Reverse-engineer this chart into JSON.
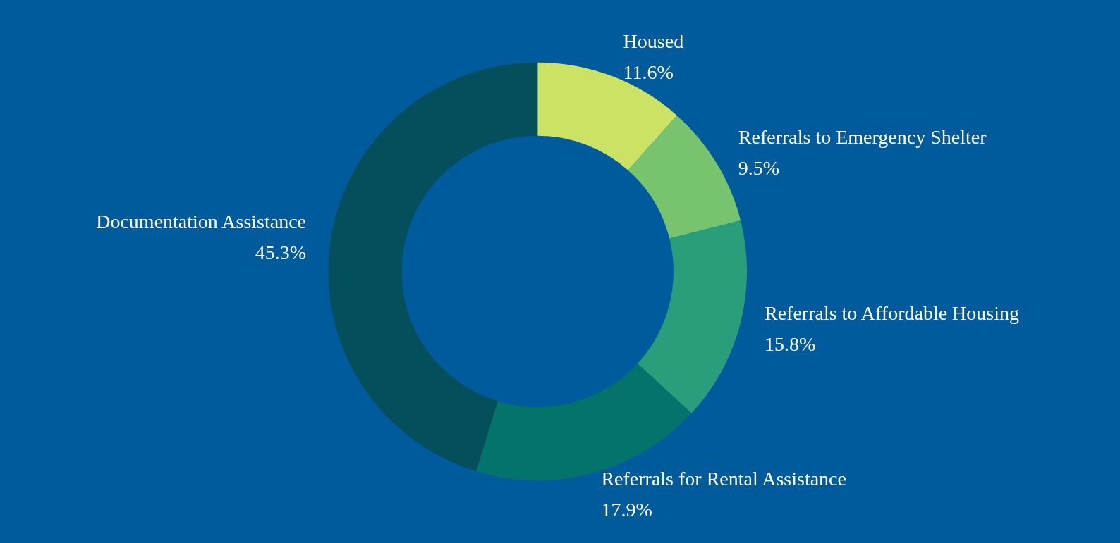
{
  "chart_data": {
    "type": "donut",
    "categories": [
      "Housed",
      "Referrals to Emergency Shelter",
      "Referrals to Affordable Housing",
      "Referrals for Rental Assistance",
      "Documentation Assistance"
    ],
    "values": [
      11.6,
      9.5,
      15.8,
      17.9,
      45.3
    ],
    "value_labels": [
      "11.6%",
      "9.5%",
      "15.8%",
      "17.9%",
      "45.3%"
    ],
    "colors": [
      "#cbe265",
      "#78c46e",
      "#2a9e7b",
      "#04736b",
      "#034f5b"
    ],
    "legend": false
  }
}
